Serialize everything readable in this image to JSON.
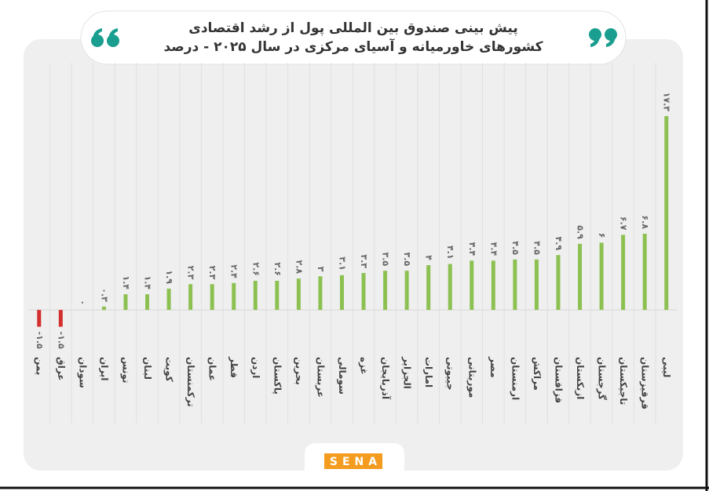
{
  "chart_data": {
    "type": "bar",
    "title": [
      "پیش بینی صندوق بین المللی پول از رشد اقتصادی",
      "کشورهای خاورمیانه و آسیای مرکزی در سال ۲۰۲۵ - درصد"
    ],
    "categories": [
      "یمن",
      "عراق",
      "سودان",
      "ایران",
      "تونس",
      "لبنان",
      "کویت",
      "ترکمنستان",
      "عمان",
      "قطر",
      "اردن",
      "پاکستان",
      "بحرین",
      "عربستان",
      "سومالی",
      "غزه",
      "آذربایجان",
      "الجزایر",
      "امارات",
      "جیبوتی",
      "موریتانی",
      "مصر",
      "ارمنستان",
      "مراکش",
      "قزاقستان",
      "ازبکستان",
      "گرجستان",
      "تاجیکستان",
      "قرقیزستان",
      "لیبی"
    ],
    "values": [
      -1.5,
      -1.5,
      0,
      0.3,
      1.4,
      1.4,
      1.9,
      2.3,
      2.3,
      2.4,
      2.6,
      2.6,
      2.8,
      3,
      3.1,
      3.3,
      3.5,
      3.5,
      4,
      4.1,
      4.4,
      4.4,
      4.5,
      4.5,
      4.9,
      5.9,
      6,
      6.7,
      6.8,
      17.3
    ],
    "value_labels": [
      "-۱.۵",
      "-۱.۵",
      "۰",
      "۰.۳",
      "۱.۴",
      "۱.۴",
      "۱.۹",
      "۲.۳",
      "۲.۳",
      "۲.۴",
      "۲.۶",
      "۲.۶",
      "۲.۸",
      "۳",
      "۳.۱",
      "۳.۳",
      "۳.۵",
      "۳.۵",
      "۴",
      "۴.۱",
      "۴.۴",
      "۴.۴",
      "۴.۵",
      "۴.۵",
      "۴.۹",
      "۵.۹",
      "۶",
      "۶.۷",
      "۶.۸",
      "۱۷.۳"
    ],
    "color": "#8cc152",
    "negative_color": "#d32f2f",
    "ylim": [
      -3,
      18
    ],
    "logo": "SENA"
  }
}
